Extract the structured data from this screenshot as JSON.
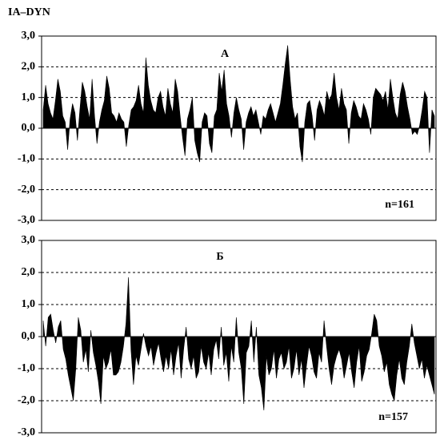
{
  "chart_data": [
    {
      "type": "area",
      "ylabel": "IA–DYN",
      "title": "А",
      "annotation": "n=161",
      "color": "#000000",
      "grid": true,
      "ylim": [
        -3,
        3
      ],
      "yticks": [
        {
          "value": 3,
          "label": "3,0"
        },
        {
          "value": 2,
          "label": "2,0"
        },
        {
          "value": 1,
          "label": "1,0"
        },
        {
          "value": 0,
          "label": "0,0"
        },
        {
          "value": -1,
          "label": "-1,0"
        },
        {
          "value": -2,
          "label": "-2,0"
        },
        {
          "value": -3,
          "label": "-3,0"
        }
      ],
      "values": [
        0.6,
        1.4,
        0.8,
        0.5,
        0.3,
        0.9,
        1.6,
        1.2,
        0.4,
        0.2,
        -0.7,
        0.3,
        0.8,
        0.5,
        -0.4,
        0.6,
        1.5,
        1.2,
        0.7,
        0.3,
        1.6,
        0.4,
        -0.5,
        0.2,
        0.6,
        0.9,
        1.7,
        1.3,
        0.5,
        0.4,
        0.2,
        0.5,
        0.3,
        0.2,
        -0.6,
        0.1,
        0.6,
        0.7,
        0.9,
        1.4,
        0.8,
        0.5,
        2.3,
        1.4,
        0.9,
        0.6,
        0.5,
        1.0,
        1.2,
        0.7,
        0.4,
        1.3,
        0.8,
        0.5,
        1.6,
        1.2,
        0.4,
        -0.3,
        -0.9,
        0.3,
        0.6,
        1.0,
        -0.4,
        -0.8,
        -1.1,
        0.2,
        0.5,
        0.4,
        -0.5,
        -0.8,
        0.4,
        0.6,
        1.8,
        1.2,
        1.9,
        0.8,
        0.4,
        -0.3,
        0.5,
        1.0,
        0.6,
        0.3,
        -0.7,
        0.2,
        0.5,
        0.7,
        0.4,
        0.6,
        0.2,
        -0.2,
        0.4,
        0.3,
        0.6,
        0.8,
        0.5,
        0.2,
        0.5,
        0.8,
        1.4,
        2.1,
        2.7,
        1.6,
        0.7,
        0.3,
        0.5,
        -0.6,
        -1.1,
        0.2,
        0.8,
        0.9,
        0.4,
        -0.4,
        0.6,
        0.9,
        0.7,
        0.4,
        1.2,
        0.9,
        1.1,
        1.8,
        1.0,
        0.6,
        1.3,
        0.8,
        0.6,
        -0.5,
        0.5,
        0.9,
        0.7,
        0.4,
        0.3,
        0.8,
        0.6,
        0.3,
        -0.2,
        1.0,
        1.3,
        1.2,
        1.1,
        0.9,
        1.2,
        0.6,
        1.6,
        1.0,
        0.5,
        0.3,
        1.1,
        1.5,
        1.2,
        0.7,
        0.3,
        -0.2,
        -0.1,
        -0.2,
        0.1,
        0.6,
        1.2,
        1.0,
        -0.8,
        0.6,
        0.4
      ]
    },
    {
      "type": "area",
      "title": "Б",
      "annotation": "n=157",
      "color": "#000000",
      "grid": true,
      "ylim": [
        -3,
        3
      ],
      "yticks": [
        {
          "value": 3,
          "label": "3,0"
        },
        {
          "value": 2,
          "label": "2,0"
        },
        {
          "value": 1,
          "label": "1,0"
        },
        {
          "value": 0,
          "label": "0,0"
        },
        {
          "value": -1,
          "label": "-1,0"
        },
        {
          "value": -2,
          "label": "-2,0"
        },
        {
          "value": -3,
          "label": "-3,0"
        }
      ],
      "values": [
        0.5,
        -0.3,
        0.6,
        0.7,
        0.2,
        -0.2,
        0.3,
        0.5,
        -0.4,
        -0.7,
        -1.2,
        -1.6,
        -2.0,
        -1.0,
        0.6,
        0.2,
        -0.8,
        -0.4,
        -1.1,
        0.2,
        -0.5,
        -0.9,
        -1.4,
        -2.1,
        -0.6,
        -1.0,
        -0.8,
        -0.4,
        -1.2,
        -1.2,
        -1.1,
        -0.8,
        -0.3,
        0.4,
        1.85,
        -0.4,
        -1.5,
        -0.6,
        -0.9,
        -0.4,
        0.1,
        -0.3,
        -0.6,
        -0.3,
        -0.9,
        -0.5,
        -0.2,
        -0.7,
        -1.1,
        -0.6,
        -1.0,
        -0.4,
        -1.2,
        -0.6,
        -0.2,
        -1.3,
        -0.4,
        0.3,
        -0.7,
        -1.0,
        -0.6,
        -1.3,
        -1.1,
        -0.3,
        -0.8,
        -1.0,
        -0.5,
        -1.2,
        -0.4,
        -0.1,
        -0.7,
        0.3,
        -0.9,
        -0.5,
        -1.4,
        -0.3,
        -0.8,
        0.6,
        -0.5,
        -1.0,
        -2.1,
        -0.5,
        -0.3,
        0.5,
        -0.8,
        0.3,
        -1.2,
        -1.6,
        -2.3,
        -0.6,
        -1.2,
        -1.0,
        -0.4,
        -1.3,
        -0.7,
        -0.5,
        -1.0,
        -0.8,
        -0.3,
        -1.3,
        -1.0,
        -0.4,
        -1.2,
        -0.7,
        -1.6,
        -0.9,
        -0.3,
        -0.6,
        -1.1,
        -1.3,
        -0.5,
        -0.8,
        0.5,
        -0.3,
        -1.0,
        -1.5,
        -0.9,
        -0.6,
        -0.4,
        -0.7,
        -1.3,
        -0.9,
        -0.5,
        -1.1,
        -1.6,
        -0.8,
        -0.3,
        -1.4,
        -1.1,
        -0.6,
        -0.4,
        0.1,
        0.7,
        0.5,
        -0.3,
        -0.6,
        -1.1,
        -0.8,
        -1.5,
        -1.8,
        -2.0,
        -1.2,
        -0.7,
        -1.3,
        -1.5,
        -0.8,
        -0.3,
        0.4,
        -0.2,
        -0.6,
        -1.0,
        -0.7,
        -1.3,
        -0.9,
        -1.2,
        -1.5,
        -1.8
      ]
    }
  ]
}
